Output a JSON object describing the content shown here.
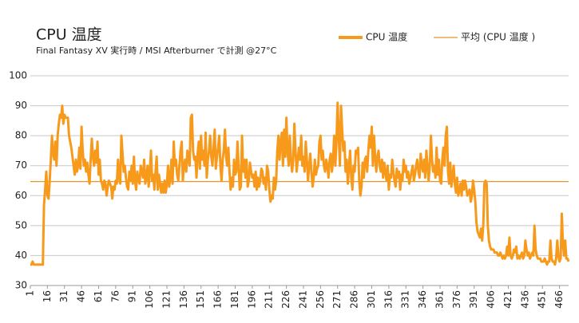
{
  "chart_data": {
    "type": "line",
    "title": "CPU 温度",
    "subtitle": "Final Fantasy XV 実行時 / MSI Afterburner で計測 @27°C",
    "x": [
      1,
      2,
      3,
      4,
      5,
      6,
      7,
      8,
      9,
      10,
      11,
      12,
      13,
      14,
      15,
      16,
      17,
      18,
      19,
      20,
      21,
      22,
      23,
      24,
      25,
      26,
      27,
      28,
      29,
      30,
      31,
      32,
      33,
      34,
      35,
      36,
      37,
      38,
      39,
      40,
      41,
      42,
      43,
      44,
      45,
      46,
      47,
      48,
      49,
      50,
      51,
      52,
      53,
      54,
      55,
      56,
      57,
      58,
      59,
      60,
      61,
      62,
      63,
      64,
      65,
      66,
      67,
      68,
      69,
      70,
      71,
      72,
      73,
      74,
      75,
      76,
      77,
      78,
      79,
      80,
      81,
      82,
      83,
      84,
      85,
      86,
      87,
      88,
      89,
      90,
      91,
      92,
      93,
      94,
      95,
      96,
      97,
      98,
      99,
      100,
      101,
      102,
      103,
      104,
      105,
      106,
      107,
      108,
      109,
      110,
      111,
      112,
      113,
      114,
      115,
      116,
      117,
      118,
      119,
      120,
      121,
      122,
      123,
      124,
      125,
      126,
      127,
      128,
      129,
      130,
      131,
      132,
      133,
      134,
      135,
      136,
      137,
      138,
      139,
      140,
      141,
      142,
      143,
      144,
      145,
      146,
      147,
      148,
      149,
      150,
      151,
      152,
      153,
      154,
      155,
      156,
      157,
      158,
      159,
      160,
      161,
      162,
      163,
      164,
      165,
      166,
      167,
      168,
      169,
      170,
      171,
      172,
      173,
      174,
      175,
      176,
      177,
      178,
      179,
      180,
      181,
      182,
      183,
      184,
      185,
      186,
      187,
      188,
      189,
      190,
      191,
      192,
      193,
      194,
      195,
      196,
      197,
      198,
      199,
      200,
      201,
      202,
      203,
      204,
      205,
      206,
      207,
      208,
      209,
      210,
      211,
      212,
      213,
      214,
      215,
      216,
      217,
      218,
      219,
      220,
      221,
      222,
      223,
      224,
      225,
      226,
      227,
      228,
      229,
      230,
      231,
      232,
      233,
      234,
      235,
      236,
      237,
      238,
      239,
      240,
      241,
      242,
      243,
      244,
      245,
      246,
      247,
      248,
      249,
      250,
      251,
      252,
      253,
      254,
      255,
      256,
      257,
      258,
      259,
      260,
      261,
      262,
      263,
      264,
      265,
      266,
      267,
      268,
      269,
      270,
      271,
      272,
      273,
      274,
      275,
      276,
      277,
      278,
      279,
      280,
      281,
      282,
      283,
      284,
      285,
      286,
      287,
      288,
      289,
      290,
      291,
      292,
      293,
      294,
      295,
      296,
      297,
      298,
      299,
      300,
      301,
      302,
      303,
      304,
      305,
      306,
      307,
      308,
      309,
      310,
      311,
      312,
      313,
      314,
      315,
      316,
      317,
      318,
      319,
      320,
      321,
      322,
      323,
      324,
      325,
      326,
      327,
      328,
      329,
      330,
      331,
      332,
      333,
      334,
      335,
      336,
      337,
      338,
      339,
      340,
      341,
      342,
      343,
      344,
      345,
      346,
      347,
      348,
      349,
      350,
      351,
      352,
      353,
      354,
      355,
      356,
      357,
      358,
      359,
      360,
      361,
      362,
      363,
      364,
      365,
      366,
      367,
      368,
      369,
      370,
      371,
      372,
      373,
      374,
      375,
      376,
      377,
      378,
      379,
      380,
      381,
      382,
      383,
      384,
      385,
      386,
      387,
      388,
      389,
      390,
      391,
      392,
      393,
      394,
      395,
      396,
      397,
      398,
      399,
      400,
      401,
      402,
      403,
      404,
      405,
      406,
      407,
      408,
      409,
      410,
      411,
      412,
      413,
      414,
      415,
      416,
      417,
      418,
      419,
      420,
      421,
      422,
      423,
      424,
      425,
      426,
      427,
      428,
      429,
      430,
      431,
      432,
      433,
      434,
      435,
      436,
      437,
      438,
      439,
      440,
      441,
      442,
      443,
      444,
      445,
      446,
      447,
      448,
      449,
      450,
      451,
      452,
      453,
      454,
      455,
      456,
      457,
      458,
      459,
      460,
      461,
      462,
      463,
      464,
      465,
      466,
      467,
      468,
      469,
      470,
      471,
      472,
      473,
      474
    ],
    "series": [
      {
        "name": "CPU 温度",
        "color": "#f79a1c",
        "values": [
          37,
          37,
          38,
          37,
          37,
          37,
          37,
          37,
          37,
          37,
          37,
          37,
          57,
          62,
          68,
          60,
          59,
          65,
          72,
          80,
          74,
          72,
          78,
          70,
          80,
          84,
          87,
          86,
          90,
          84,
          87,
          86,
          86,
          86,
          80,
          78,
          76,
          73,
          70,
          67,
          72,
          68,
          70,
          76,
          69,
          83,
          75,
          70,
          72,
          68,
          71,
          67,
          64,
          72,
          79,
          73,
          70,
          75,
          71,
          78,
          67,
          72,
          65,
          64,
          62,
          65,
          64,
          60,
          63,
          65,
          64,
          63,
          59,
          63,
          62,
          65,
          64,
          72,
          66,
          64,
          80,
          74,
          68,
          70,
          66,
          63,
          62,
          68,
          65,
          70,
          64,
          73,
          65,
          62,
          68,
          65,
          64,
          70,
          68,
          66,
          72,
          64,
          66,
          70,
          63,
          68,
          75,
          65,
          67,
          62,
          68,
          73,
          62,
          67,
          64,
          61,
          64,
          61,
          65,
          61,
          64,
          70,
          63,
          66,
          72,
          64,
          78,
          70,
          72,
          67,
          65,
          70,
          75,
          78,
          65,
          70,
          72,
          68,
          75,
          72,
          70,
          86,
          87,
          75,
          72,
          73,
          66,
          74,
          78,
          69,
          80,
          72,
          75,
          70,
          81,
          66,
          72,
          75,
          80,
          73,
          70,
          76,
          82,
          69,
          73,
          76,
          80,
          70,
          65,
          72,
          75,
          82,
          73,
          70,
          76,
          68,
          62,
          66,
          63,
          72,
          67,
          68,
          78,
          70,
          62,
          63,
          80,
          68,
          72,
          66,
          72,
          63,
          65,
          71,
          68,
          66,
          67,
          63,
          68,
          62,
          66,
          63,
          65,
          69,
          68,
          64,
          66,
          62,
          70,
          68,
          62,
          58,
          60,
          59,
          66,
          62,
          65,
          75,
          80,
          72,
          78,
          81,
          70,
          82,
          73,
          86,
          75,
          70,
          80,
          72,
          68,
          72,
          84,
          75,
          68,
          72,
          76,
          72,
          80,
          70,
          73,
          68,
          78,
          72,
          65,
          70,
          74,
          68,
          63,
          66,
          72,
          67,
          69,
          70,
          78,
          80,
          72,
          75,
          70,
          68,
          72,
          70,
          66,
          72,
          74,
          68,
          72,
          80,
          70,
          78,
          91,
          80,
          70,
          90,
          82,
          75,
          78,
          68,
          72,
          64,
          70,
          75,
          66,
          62,
          70,
          68,
          75,
          74,
          76,
          65,
          60,
          63,
          71,
          66,
          72,
          73,
          68,
          75,
          80,
          76,
          83,
          70,
          80,
          73,
          68,
          73,
          75,
          70,
          68,
          72,
          66,
          71,
          68,
          65,
          70,
          62,
          67,
          66,
          72,
          68,
          65,
          63,
          69,
          66,
          68,
          62,
          67,
          65,
          72,
          68,
          70,
          66,
          68,
          64,
          66,
          68,
          70,
          65,
          67,
          70,
          72,
          68,
          66,
          74,
          70,
          68,
          72,
          66,
          75,
          70,
          65,
          70,
          80,
          72,
          68,
          70,
          66,
          76,
          67,
          72,
          65,
          64,
          72,
          76,
          70,
          80,
          83,
          68,
          64,
          71,
          63,
          67,
          70,
          64,
          61,
          66,
          60,
          62,
          64,
          60,
          65,
          62,
          65,
          63,
          60,
          61,
          62,
          58,
          60,
          65,
          62,
          58,
          51,
          48,
          47,
          46,
          49,
          45,
          50,
          64,
          65,
          64,
          50,
          45,
          43,
          42,
          42,
          42,
          41,
          41,
          41,
          40,
          40,
          41,
          40,
          39,
          40,
          39,
          40,
          43,
          40,
          46,
          40,
          39,
          40,
          42,
          41,
          43,
          39,
          40,
          39,
          40,
          41,
          39,
          40,
          45,
          42,
          40,
          41,
          39,
          40,
          41,
          40,
          50,
          42,
          40,
          39,
          39,
          39,
          38,
          38,
          38,
          39,
          38,
          37,
          38,
          38,
          45,
          39,
          38,
          38,
          37,
          39,
          45,
          40,
          38,
          39,
          54,
          44,
          40,
          45,
          39,
          39,
          38
        ]
      }
    ],
    "average": {
      "name": "平均 (CPU 温度 )",
      "color": "#e8952a",
      "value": 64.7
    },
    "xlim": [
      1,
      474
    ],
    "xticks": [
      1,
      16,
      31,
      46,
      61,
      76,
      91,
      106,
      121,
      136,
      151,
      166,
      181,
      196,
      211,
      226,
      241,
      256,
      271,
      286,
      301,
      316,
      331,
      346,
      361,
      376,
      391,
      406,
      421,
      436,
      451,
      466
    ],
    "ylim": [
      30,
      100
    ],
    "yticks": [
      30,
      40,
      50,
      60,
      70,
      80,
      90,
      100
    ],
    "grid": true
  }
}
